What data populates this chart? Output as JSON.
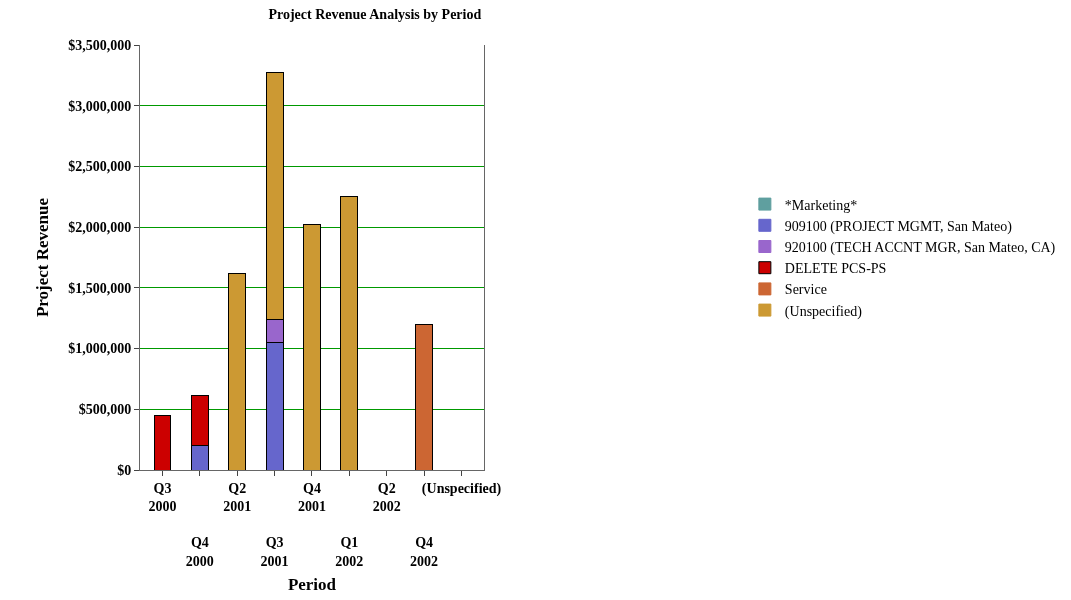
{
  "chart_data": {
    "type": "bar",
    "stacked": true,
    "title": "Project Revenue Analysis by Period",
    "xlabel": "Period",
    "ylabel": "Project Revenue",
    "categories": [
      "Q3\n2000",
      "Q4\n2000",
      "Q2\n2001",
      "Q3\n2001",
      "Q4\n2001",
      "Q1\n2002",
      "Q2\n2002",
      "Q4\n2002",
      "(Unspecified)"
    ],
    "series": [
      {
        "name": "*Marketing*",
        "color": "#5f9f9f",
        "values": [
          null,
          null,
          null,
          null,
          null,
          null,
          null,
          null,
          null
        ]
      },
      {
        "name": "909100 (PROJECT MGMT, San Mateo)",
        "color": "#6666cc",
        "values": [
          null,
          200000,
          null,
          1050000,
          null,
          null,
          null,
          null,
          null
        ]
      },
      {
        "name": "920100 (TECH ACCNT MGR, San Mateo, CA)",
        "color": "#9966cc",
        "values": [
          null,
          null,
          null,
          190000,
          null,
          null,
          null,
          null,
          null
        ]
      },
      {
        "name": "DELETE PCS-PS",
        "color": "#cc0000",
        "values": [
          450000,
          410000,
          null,
          null,
          null,
          null,
          null,
          null,
          null
        ]
      },
      {
        "name": "Service",
        "color": "#cc6633",
        "values": [
          null,
          null,
          null,
          null,
          null,
          null,
          null,
          1200000,
          null
        ]
      },
      {
        "name": "(Unspecified)",
        "color": "#cc9933",
        "values": [
          null,
          null,
          1620000,
          2030000,
          2020000,
          2250000,
          0,
          null,
          0
        ]
      }
    ],
    "ylim": [
      0,
      3500000
    ],
    "yticks": [
      {
        "value": 0,
        "label": "$0"
      },
      {
        "value": 500000,
        "label": "$500,000"
      },
      {
        "value": 1000000,
        "label": "$1,000,000"
      },
      {
        "value": 1500000,
        "label": "$1,500,000"
      },
      {
        "value": 2000000,
        "label": "$2,000,000"
      },
      {
        "value": 2500000,
        "label": "$2,500,000"
      },
      {
        "value": 3000000,
        "label": "$3,000,000"
      },
      {
        "value": 3500000,
        "label": "$3,500,000"
      }
    ],
    "grid": "y",
    "legend": "right"
  }
}
